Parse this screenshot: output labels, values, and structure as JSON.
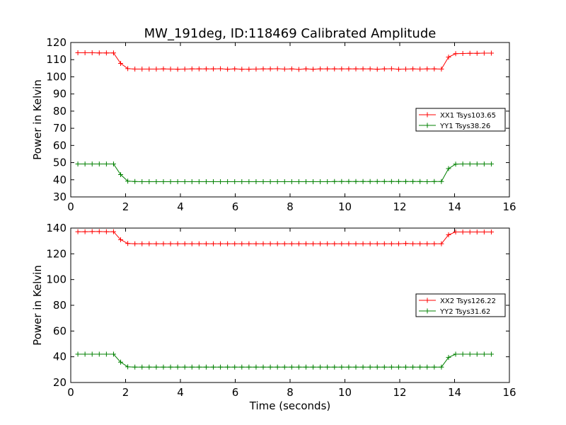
{
  "figure": {
    "title": "MW_191deg, ID:118469 Calibrated Amplitude",
    "xlabel": "Time (seconds)"
  },
  "chart_data": [
    {
      "type": "line",
      "title": "MW_191deg, ID:118469 Calibrated Amplitude",
      "xlabel": "",
      "ylabel": "Power in Kelvin",
      "xlim": [
        0,
        16
      ],
      "ylim": [
        30,
        120
      ],
      "xticks": [
        "0",
        "2",
        "4",
        "6",
        "8",
        "10",
        "12",
        "14",
        "16"
      ],
      "yticks": [
        "30",
        "40",
        "50",
        "60",
        "70",
        "80",
        "90",
        "100",
        "110",
        "120"
      ],
      "grid": false,
      "legend_position": "center-right",
      "x": [
        0.26,
        0.52,
        0.78,
        1.04,
        1.3,
        1.56,
        1.82,
        2.08,
        2.34,
        2.6,
        2.86,
        3.12,
        3.38,
        3.64,
        3.9,
        4.16,
        4.42,
        4.68,
        4.94,
        5.2,
        5.46,
        5.72,
        5.98,
        6.24,
        6.5,
        6.76,
        7.02,
        7.28,
        7.54,
        7.8,
        8.06,
        8.32,
        8.58,
        8.84,
        9.1,
        9.36,
        9.62,
        9.88,
        10.14,
        10.4,
        10.66,
        10.92,
        11.18,
        11.44,
        11.7,
        11.96,
        12.22,
        12.48,
        12.74,
        13.0,
        13.26,
        13.52,
        13.78,
        14.04,
        14.3,
        14.56,
        14.82,
        15.08,
        15.34
      ],
      "series": [
        {
          "name": "XX1 Tsys103.65",
          "color": "#ff0000",
          "values": [
            114.0,
            114.0,
            114.0,
            113.9,
            113.9,
            113.9,
            107.8,
            104.8,
            104.5,
            104.5,
            104.5,
            104.5,
            104.6,
            104.5,
            104.4,
            104.5,
            104.6,
            104.6,
            104.6,
            104.6,
            104.7,
            104.4,
            104.6,
            104.4,
            104.4,
            104.5,
            104.6,
            104.6,
            104.7,
            104.5,
            104.6,
            104.3,
            104.6,
            104.4,
            104.6,
            104.6,
            104.6,
            104.6,
            104.6,
            104.6,
            104.6,
            104.6,
            104.4,
            104.6,
            104.7,
            104.4,
            104.5,
            104.6,
            104.5,
            104.6,
            104.6,
            104.5,
            111.5,
            113.5,
            113.6,
            113.7,
            113.7,
            113.8,
            113.8
          ]
        },
        {
          "name": "YY1 Tsys38.26",
          "color": "#008000",
          "values": [
            49.2,
            49.2,
            49.2,
            49.2,
            49.2,
            49.2,
            43.0,
            39.2,
            39.0,
            38.9,
            38.9,
            38.9,
            38.9,
            38.9,
            38.9,
            38.9,
            38.9,
            38.9,
            38.9,
            38.9,
            38.9,
            38.9,
            38.9,
            38.9,
            38.9,
            38.9,
            38.9,
            38.9,
            38.9,
            38.9,
            38.9,
            38.9,
            38.9,
            38.9,
            38.9,
            38.9,
            39.0,
            39.0,
            39.0,
            39.0,
            39.0,
            39.0,
            39.0,
            39.0,
            39.0,
            39.0,
            39.0,
            39.0,
            39.0,
            38.9,
            39.0,
            39.0,
            46.5,
            49.1,
            49.2,
            49.2,
            49.2,
            49.2,
            49.2
          ]
        }
      ]
    },
    {
      "type": "line",
      "title": "",
      "xlabel": "Time (seconds)",
      "ylabel": "Power in Kelvin",
      "xlim": [
        0,
        16
      ],
      "ylim": [
        20,
        140
      ],
      "xticks": [
        "0",
        "2",
        "4",
        "6",
        "8",
        "10",
        "12",
        "14",
        "16"
      ],
      "yticks": [
        "20",
        "40",
        "60",
        "80",
        "100",
        "120",
        "140"
      ],
      "grid": false,
      "legend_position": "center-right",
      "x": [
        0.26,
        0.52,
        0.78,
        1.04,
        1.3,
        1.56,
        1.82,
        2.08,
        2.34,
        2.6,
        2.86,
        3.12,
        3.38,
        3.64,
        3.9,
        4.16,
        4.42,
        4.68,
        4.94,
        5.2,
        5.46,
        5.72,
        5.98,
        6.24,
        6.5,
        6.76,
        7.02,
        7.28,
        7.54,
        7.8,
        8.06,
        8.32,
        8.58,
        8.84,
        9.1,
        9.36,
        9.62,
        9.88,
        10.14,
        10.4,
        10.66,
        10.92,
        11.18,
        11.44,
        11.7,
        11.96,
        12.22,
        12.48,
        12.74,
        13.0,
        13.26,
        13.52,
        13.78,
        14.04,
        14.3,
        14.56,
        14.82,
        15.08,
        15.34
      ],
      "series": [
        {
          "name": "XX2 Tsys126.22",
          "color": "#ff0000",
          "values": [
            137.2,
            137.2,
            137.3,
            137.3,
            137.2,
            137.2,
            131.0,
            128.0,
            127.8,
            127.8,
            127.8,
            127.8,
            127.8,
            127.8,
            127.8,
            127.8,
            127.8,
            127.8,
            127.8,
            127.8,
            127.8,
            127.8,
            127.8,
            127.8,
            127.8,
            127.8,
            127.8,
            127.8,
            127.8,
            127.8,
            127.8,
            127.8,
            127.8,
            127.8,
            127.8,
            127.8,
            127.8,
            127.8,
            127.8,
            127.8,
            127.8,
            127.8,
            127.8,
            127.8,
            127.8,
            127.8,
            128.0,
            127.8,
            127.8,
            127.8,
            127.8,
            127.8,
            134.8,
            137.0,
            137.0,
            137.0,
            137.0,
            137.0,
            137.0
          ]
        },
        {
          "name": "YY2 Tsys31.62",
          "color": "#008000",
          "values": [
            42.0,
            42.0,
            42.0,
            42.0,
            42.0,
            42.0,
            35.8,
            32.2,
            32.0,
            32.0,
            32.0,
            32.0,
            32.0,
            32.0,
            32.0,
            32.0,
            32.0,
            32.0,
            32.0,
            32.0,
            32.0,
            32.0,
            32.0,
            32.0,
            32.0,
            32.0,
            32.0,
            32.0,
            32.0,
            32.0,
            32.0,
            32.0,
            32.0,
            32.0,
            32.0,
            32.0,
            32.0,
            32.0,
            32.0,
            32.0,
            32.0,
            32.0,
            32.0,
            32.0,
            32.0,
            32.0,
            32.0,
            32.0,
            32.0,
            32.0,
            32.0,
            32.0,
            39.5,
            42.0,
            42.0,
            42.0,
            42.0,
            42.0,
            42.0
          ]
        }
      ]
    }
  ]
}
